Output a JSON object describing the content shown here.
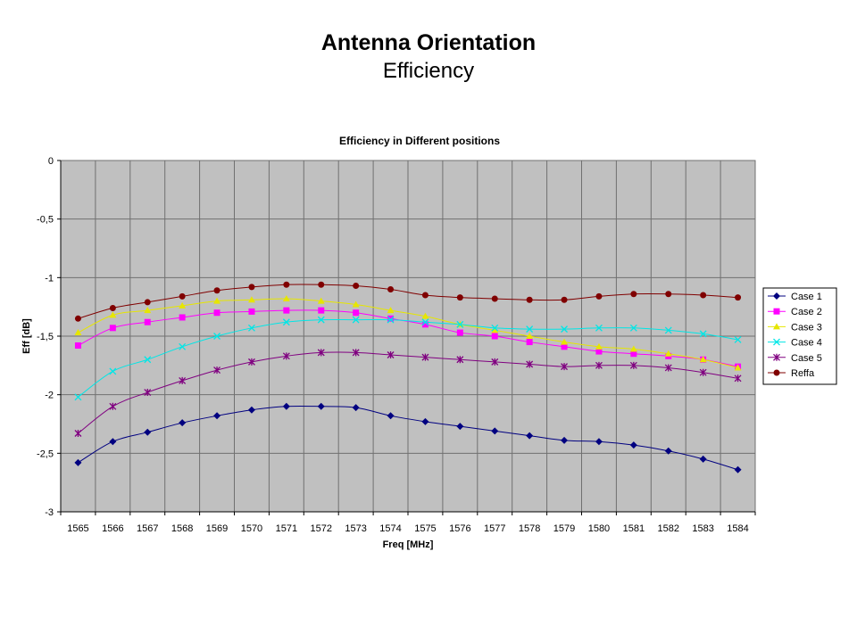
{
  "slide": {
    "title": "Antenna Orientation",
    "subtitle": "Efficiency"
  },
  "chart_data": {
    "type": "line",
    "title": "Efficiency in Different positions",
    "xlabel": "Freq [MHz]",
    "ylabel": "Eff [dB]",
    "ylim": [
      -3,
      0
    ],
    "y_ticks": [
      0,
      -0.5,
      -1,
      -1.5,
      -2,
      -2.5,
      -3
    ],
    "y_tick_labels": [
      "0",
      "-0,5",
      "-1",
      "-1,5",
      "-2",
      "-2,5",
      "-3"
    ],
    "grid": true,
    "legend_position": "right",
    "categories": [
      "1565",
      "1566",
      "1567",
      "1568",
      "1569",
      "1570",
      "1571",
      "1572",
      "1573",
      "1574",
      "1575",
      "1576",
      "1577",
      "1578",
      "1579",
      "1580",
      "1581",
      "1582",
      "1583",
      "1584"
    ],
    "series": [
      {
        "name": "Case 1",
        "color": "#000080",
        "marker": "diamond",
        "values": [
          -2.58,
          -2.4,
          -2.32,
          -2.24,
          -2.18,
          -2.13,
          -2.1,
          -2.1,
          -2.11,
          -2.18,
          -2.23,
          -2.27,
          -2.31,
          -2.35,
          -2.39,
          -2.4,
          -2.43,
          -2.48,
          -2.55,
          -2.64
        ]
      },
      {
        "name": "Case 2",
        "color": "#ff00ff",
        "marker": "square",
        "values": [
          -1.58,
          -1.43,
          -1.38,
          -1.34,
          -1.3,
          -1.29,
          -1.28,
          -1.28,
          -1.3,
          -1.35,
          -1.4,
          -1.47,
          -1.5,
          -1.55,
          -1.59,
          -1.63,
          -1.65,
          -1.67,
          -1.7,
          -1.76
        ]
      },
      {
        "name": "Case 3",
        "color": "#e6e600",
        "marker": "triangle",
        "values": [
          -1.47,
          -1.32,
          -1.28,
          -1.24,
          -1.2,
          -1.19,
          -1.18,
          -1.2,
          -1.23,
          -1.28,
          -1.33,
          -1.4,
          -1.45,
          -1.5,
          -1.55,
          -1.59,
          -1.61,
          -1.65,
          -1.7,
          -1.77
        ]
      },
      {
        "name": "Case 4",
        "color": "#00e6e6",
        "marker": "x",
        "values": [
          -2.02,
          -1.8,
          -1.7,
          -1.59,
          -1.5,
          -1.43,
          -1.38,
          -1.36,
          -1.36,
          -1.36,
          -1.38,
          -1.4,
          -1.43,
          -1.44,
          -1.44,
          -1.43,
          -1.43,
          -1.45,
          -1.48,
          -1.53
        ]
      },
      {
        "name": "Case 5",
        "color": "#800080",
        "marker": "star",
        "values": [
          -2.33,
          -2.1,
          -1.98,
          -1.88,
          -1.79,
          -1.72,
          -1.67,
          -1.64,
          -1.64,
          -1.66,
          -1.68,
          -1.7,
          -1.72,
          -1.74,
          -1.76,
          -1.75,
          -1.75,
          -1.77,
          -1.81,
          -1.86
        ]
      },
      {
        "name": "Reffa",
        "color": "#800000",
        "marker": "circle",
        "values": [
          -1.35,
          -1.26,
          -1.21,
          -1.16,
          -1.11,
          -1.08,
          -1.06,
          -1.06,
          -1.07,
          -1.1,
          -1.15,
          -1.17,
          -1.18,
          -1.19,
          -1.19,
          -1.16,
          -1.14,
          -1.14,
          -1.15,
          -1.17
        ]
      }
    ]
  }
}
